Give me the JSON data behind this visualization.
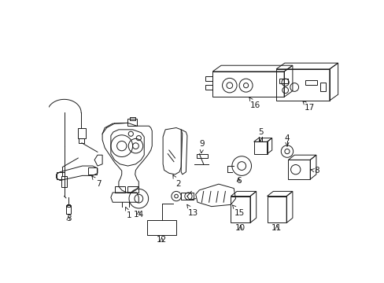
{
  "bg_color": "#ffffff",
  "line_color": "#1a1a1a",
  "lw": 0.7,
  "fig_w": 4.89,
  "fig_h": 3.6,
  "dpi": 100
}
